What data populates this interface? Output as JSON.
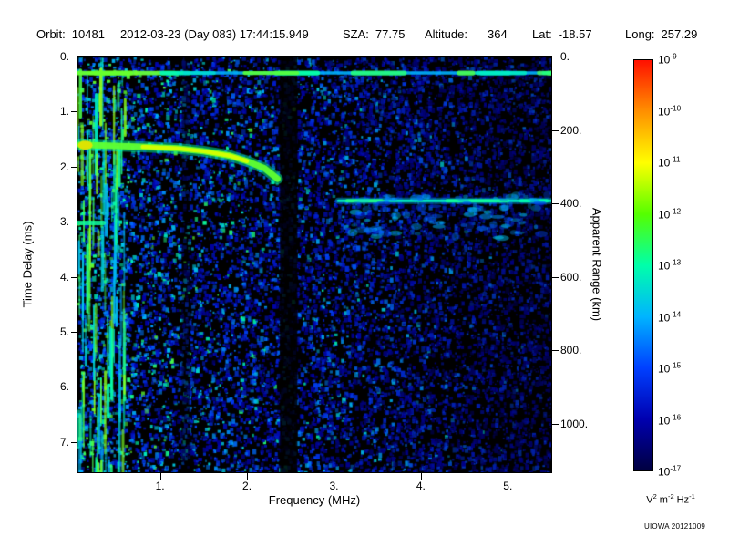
{
  "header": {
    "items": [
      {
        "label": "Orbit:",
        "value": "10481"
      },
      {
        "label": "",
        "value": "2012-03-23 (Day 083) 17:44:15.949"
      },
      {
        "label": "SZA:",
        "value": "77.75"
      },
      {
        "label": "Altitude:",
        "value": "364"
      },
      {
        "label": "Lat:",
        "value": "-18.57"
      },
      {
        "label": "Long:",
        "value": "257.29"
      }
    ]
  },
  "footer": {
    "credit": "UIOWA 20121009"
  },
  "chart_data": {
    "type": "heatmap",
    "subtype": "radar-sounder-ionogram-spectrogram",
    "x_axis": {
      "label": "Frequency (MHz)",
      "min": 0.05,
      "max": 5.5,
      "ticks": [
        1,
        2,
        3,
        4,
        5
      ],
      "tick_labels": [
        "1.",
        "2.",
        "3.",
        "4.",
        "5."
      ]
    },
    "y_axis_left": {
      "label": "Time Delay (ms)",
      "min": 0,
      "max": 7.55,
      "direction": "down",
      "ticks": [
        0,
        1,
        2,
        3,
        4,
        5,
        6,
        7
      ],
      "tick_labels": [
        "0.",
        "1.",
        "2.",
        "3.",
        "4.",
        "5.",
        "6.",
        "7."
      ]
    },
    "y_axis_right": {
      "label": "Apparent Range (km)",
      "km_per_ms": 150,
      "ticks_km": [
        0,
        200,
        400,
        600,
        800,
        1000
      ],
      "tick_labels": [
        "0.",
        "200.",
        "400.",
        "600.",
        "800.",
        "1000."
      ]
    },
    "colorbar": {
      "scale": "log",
      "max": "1e-9",
      "min": "1e-17",
      "exponents": [
        -9,
        -10,
        -11,
        -12,
        -13,
        -14,
        -15,
        -16,
        -17
      ],
      "units_parts": [
        [
          "V",
          "2"
        ],
        [
          "m",
          "-2"
        ],
        [
          "Hz",
          "-1"
        ]
      ],
      "gradient_top_to_bottom": [
        "#ff1000",
        "#ff9000",
        "#ffff00",
        "#55ff00",
        "#00ffaa",
        "#00b4ff",
        "#0040ff",
        "#0000b0",
        "#000040"
      ]
    },
    "features": [
      {
        "name": "receiver-leakage-line",
        "type": "hline",
        "time_delay_ms": 0.3,
        "f_start": 0.05,
        "f_end": 5.5,
        "intensity": "cyan-green"
      },
      {
        "name": "ionospheric-echo-trace",
        "type": "trace",
        "peak_intensity": "yellow-green",
        "points_f_mhz_vs_delay_ms": [
          [
            0.08,
            1.6
          ],
          [
            0.4,
            1.62
          ],
          [
            0.8,
            1.64
          ],
          [
            1.2,
            1.67
          ],
          [
            1.5,
            1.72
          ],
          [
            1.8,
            1.8
          ],
          [
            2.0,
            1.9
          ],
          [
            2.2,
            2.03
          ],
          [
            2.35,
            2.22
          ]
        ]
      },
      {
        "name": "second-hop-echo-spot",
        "type": "segment",
        "time_delay_ms": 3.02,
        "f_start": 0.05,
        "f_end": 0.35
      },
      {
        "name": "ground-echo-line",
        "type": "hline",
        "time_delay_ms": 2.62,
        "f_start": 3.05,
        "f_end": 5.5,
        "apparent_range_km": 393,
        "intensity": "cyan",
        "bright_segments": [
          [
            3.15,
            3.55,
            0.62
          ],
          [
            4.3,
            5.0,
            0.6
          ],
          [
            5.15,
            5.45,
            0.58
          ]
        ]
      },
      {
        "name": "ground-echo-diffuse-scatter",
        "type": "blob-band",
        "f_start": 3.2,
        "f_end": 5.5,
        "delay_start_ms": 2.5,
        "delay_end_ms": 3.3
      },
      {
        "name": "low-frequency-noise-band",
        "type": "vband",
        "f_start": 0.05,
        "f_end": 0.6,
        "intensity": "green"
      },
      {
        "name": "attenuation-gap",
        "type": "vgap",
        "f_start": 2.38,
        "f_end": 2.58,
        "alpha": 0.85
      },
      {
        "name": "attenuation-gap-minor",
        "type": "vgap",
        "f_start": 1.25,
        "f_35end": 1.35,
        "f_end": 1.35,
        "alpha": 0.45
      }
    ],
    "noise": {
      "seed": 77,
      "speckle_count": 14000,
      "background": "#000000"
    }
  }
}
